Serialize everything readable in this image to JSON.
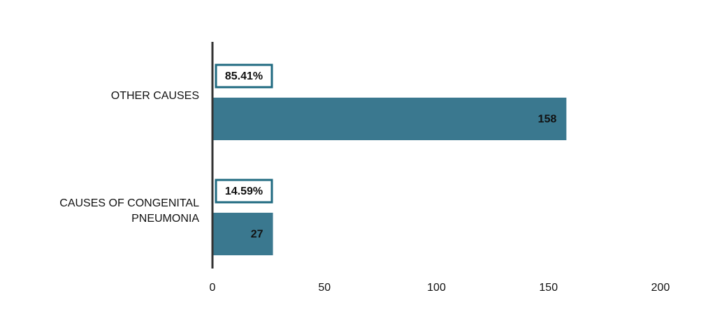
{
  "chart_data": {
    "type": "hbar",
    "categories": [
      "OTHER CAUSES",
      "CAUSES OF CONGENITAL PNEUMONIA"
    ],
    "values": [
      158,
      27
    ],
    "percent_labels": [
      "85.41%",
      "14.59%"
    ],
    "color": "#2f7189",
    "xlim": [
      0,
      200
    ],
    "xticks": [
      0,
      50,
      100,
      150,
      200
    ],
    "grid": true
  }
}
